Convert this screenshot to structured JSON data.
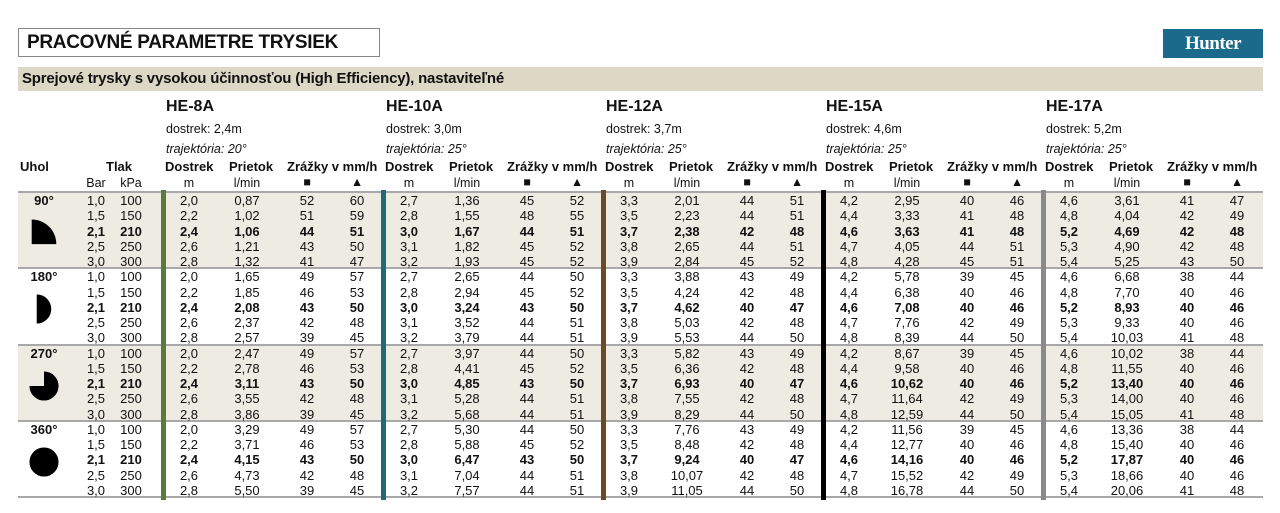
{
  "title": "PRACOVNÉ PARAMETRE TRYSIEK",
  "logo_text": "Hunter",
  "subtitle": "Sprejové trysky s vysokou účinnosťou (High Efficiency), nastaviteľné",
  "headers": {
    "uhol": "Uhol",
    "tlak": "Tlak",
    "bar": "Bar",
    "kpa": "kPa",
    "dostrek": "Dostrek",
    "prietok": "Prietok",
    "zrazky": "Zrážky v mm/h",
    "unit_m": "m",
    "unit_lmin": "l/min",
    "square_symbol": "■",
    "triangle_symbol": "▲"
  },
  "highlighted_row": 2,
  "angles": [
    {
      "label": "90°",
      "shape": "quarter-circle",
      "shaded": true
    },
    {
      "label": "180°",
      "shape": "half-circle",
      "shaded": false
    },
    {
      "label": "270°",
      "shape": "three-quarter-circle",
      "shaded": true
    },
    {
      "label": "360°",
      "shape": "full-circle",
      "shaded": false
    }
  ],
  "pressures": [
    [
      "1,0",
      "100"
    ],
    [
      "1,5",
      "150"
    ],
    [
      "2,1",
      "210"
    ],
    [
      "2,5",
      "250"
    ],
    [
      "3,0",
      "300"
    ]
  ],
  "models": [
    {
      "name": "HE-8A",
      "dostrek": "dostrek: 2,4m",
      "trajektoria": "trajektória: 20°",
      "color": "#5b7b3a",
      "groups": [
        [
          [
            "2,0",
            "0,87",
            "52",
            "60"
          ],
          [
            "2,2",
            "1,02",
            "51",
            "59"
          ],
          [
            "2,4",
            "1,06",
            "44",
            "51"
          ],
          [
            "2,6",
            "1,21",
            "43",
            "50"
          ],
          [
            "2,8",
            "1,32",
            "41",
            "47"
          ]
        ],
        [
          [
            "2,0",
            "1,65",
            "49",
            "57"
          ],
          [
            "2,2",
            "1,85",
            "46",
            "53"
          ],
          [
            "2,4",
            "2,08",
            "43",
            "50"
          ],
          [
            "2,6",
            "2,37",
            "42",
            "48"
          ],
          [
            "2,8",
            "2,57",
            "39",
            "45"
          ]
        ],
        [
          [
            "2,0",
            "2,47",
            "49",
            "57"
          ],
          [
            "2,2",
            "2,78",
            "46",
            "53"
          ],
          [
            "2,4",
            "3,11",
            "43",
            "50"
          ],
          [
            "2,6",
            "3,55",
            "42",
            "48"
          ],
          [
            "2,8",
            "3,86",
            "39",
            "45"
          ]
        ],
        [
          [
            "2,0",
            "3,29",
            "49",
            "57"
          ],
          [
            "2,2",
            "3,71",
            "46",
            "53"
          ],
          [
            "2,4",
            "4,15",
            "43",
            "50"
          ],
          [
            "2,6",
            "4,73",
            "42",
            "48"
          ],
          [
            "2,8",
            "5,50",
            "39",
            "45"
          ]
        ]
      ]
    },
    {
      "name": "HE-10A",
      "dostrek": "dostrek: 3,0m",
      "trajektoria": "trajektória: 25°",
      "color": "#1e6a78",
      "groups": [
        [
          [
            "2,7",
            "1,36",
            "45",
            "52"
          ],
          [
            "2,8",
            "1,55",
            "48",
            "55"
          ],
          [
            "3,0",
            "1,67",
            "44",
            "51"
          ],
          [
            "3,1",
            "1,82",
            "45",
            "52"
          ],
          [
            "3,2",
            "1,93",
            "45",
            "52"
          ]
        ],
        [
          [
            "2,7",
            "2,65",
            "44",
            "50"
          ],
          [
            "2,8",
            "2,94",
            "45",
            "52"
          ],
          [
            "3,0",
            "3,24",
            "43",
            "50"
          ],
          [
            "3,1",
            "3,52",
            "44",
            "51"
          ],
          [
            "3,2",
            "3,79",
            "44",
            "51"
          ]
        ],
        [
          [
            "2,7",
            "3,97",
            "44",
            "50"
          ],
          [
            "2,8",
            "4,41",
            "45",
            "52"
          ],
          [
            "3,0",
            "4,85",
            "43",
            "50"
          ],
          [
            "3,1",
            "5,28",
            "44",
            "51"
          ],
          [
            "3,2",
            "5,68",
            "44",
            "51"
          ]
        ],
        [
          [
            "2,7",
            "5,30",
            "44",
            "50"
          ],
          [
            "2,8",
            "5,88",
            "45",
            "52"
          ],
          [
            "3,0",
            "6,47",
            "43",
            "50"
          ],
          [
            "3,1",
            "7,04",
            "44",
            "51"
          ],
          [
            "3,2",
            "7,57",
            "44",
            "51"
          ]
        ]
      ]
    },
    {
      "name": "HE-12A",
      "dostrek": "dostrek: 3,7m",
      "trajektoria": "trajektória: 25°",
      "color": "#6a4a28",
      "groups": [
        [
          [
            "3,3",
            "2,01",
            "44",
            "51"
          ],
          [
            "3,5",
            "2,23",
            "44",
            "51"
          ],
          [
            "3,7",
            "2,38",
            "42",
            "48"
          ],
          [
            "3,8",
            "2,65",
            "44",
            "51"
          ],
          [
            "3,9",
            "2,84",
            "45",
            "52"
          ]
        ],
        [
          [
            "3,3",
            "3,88",
            "43",
            "49"
          ],
          [
            "3,5",
            "4,24",
            "42",
            "48"
          ],
          [
            "3,7",
            "4,62",
            "40",
            "47"
          ],
          [
            "3,8",
            "5,03",
            "42",
            "48"
          ],
          [
            "3,9",
            "5,53",
            "44",
            "50"
          ]
        ],
        [
          [
            "3,3",
            "5,82",
            "43",
            "49"
          ],
          [
            "3,5",
            "6,36",
            "42",
            "48"
          ],
          [
            "3,7",
            "6,93",
            "40",
            "47"
          ],
          [
            "3,8",
            "7,55",
            "42",
            "48"
          ],
          [
            "3,9",
            "8,29",
            "44",
            "50"
          ]
        ],
        [
          [
            "3,3",
            "7,76",
            "43",
            "49"
          ],
          [
            "3,5",
            "8,48",
            "42",
            "48"
          ],
          [
            "3,7",
            "9,24",
            "40",
            "47"
          ],
          [
            "3,8",
            "10,07",
            "42",
            "48"
          ],
          [
            "3,9",
            "11,05",
            "44",
            "50"
          ]
        ]
      ]
    },
    {
      "name": "HE-15A",
      "dostrek": "dostrek: 4,6m",
      "trajektoria": "trajektória: 25°",
      "color": "#000000",
      "groups": [
        [
          [
            "4,2",
            "2,95",
            "40",
            "46"
          ],
          [
            "4,4",
            "3,33",
            "41",
            "48"
          ],
          [
            "4,6",
            "3,63",
            "41",
            "48"
          ],
          [
            "4,7",
            "4,05",
            "44",
            "51"
          ],
          [
            "4,8",
            "4,28",
            "45",
            "51"
          ]
        ],
        [
          [
            "4,2",
            "5,78",
            "39",
            "45"
          ],
          [
            "4,4",
            "6,38",
            "40",
            "46"
          ],
          [
            "4,6",
            "7,08",
            "40",
            "46"
          ],
          [
            "4,7",
            "7,76",
            "42",
            "49"
          ],
          [
            "4,8",
            "8,39",
            "44",
            "50"
          ]
        ],
        [
          [
            "4,2",
            "8,67",
            "39",
            "45"
          ],
          [
            "4,4",
            "9,58",
            "40",
            "46"
          ],
          [
            "4,6",
            "10,62",
            "40",
            "46"
          ],
          [
            "4,7",
            "11,64",
            "42",
            "49"
          ],
          [
            "4,8",
            "12,59",
            "44",
            "50"
          ]
        ],
        [
          [
            "4,2",
            "11,56",
            "39",
            "45"
          ],
          [
            "4,4",
            "12,77",
            "40",
            "46"
          ],
          [
            "4,6",
            "14,16",
            "40",
            "46"
          ],
          [
            "4,7",
            "15,52",
            "42",
            "49"
          ],
          [
            "4,8",
            "16,78",
            "44",
            "50"
          ]
        ]
      ]
    },
    {
      "name": "HE-17A",
      "dostrek": "dostrek: 5,2m",
      "trajektoria": "trajektória: 25°",
      "color": "#8a8a8a",
      "groups": [
        [
          [
            "4,6",
            "3,61",
            "41",
            "47"
          ],
          [
            "4,8",
            "4,04",
            "42",
            "49"
          ],
          [
            "5,2",
            "4,69",
            "42",
            "48"
          ],
          [
            "5,3",
            "4,90",
            "42",
            "48"
          ],
          [
            "5,4",
            "5,25",
            "43",
            "50"
          ]
        ],
        [
          [
            "4,6",
            "6,68",
            "38",
            "44"
          ],
          [
            "4,8",
            "7,70",
            "40",
            "46"
          ],
          [
            "5,2",
            "8,93",
            "40",
            "46"
          ],
          [
            "5,3",
            "9,33",
            "40",
            "46"
          ],
          [
            "5,4",
            "10,03",
            "41",
            "48"
          ]
        ],
        [
          [
            "4,6",
            "10,02",
            "38",
            "44"
          ],
          [
            "4,8",
            "11,55",
            "40",
            "46"
          ],
          [
            "5,2",
            "13,40",
            "40",
            "46"
          ],
          [
            "5,3",
            "14,00",
            "40",
            "46"
          ],
          [
            "5,4",
            "15,05",
            "41",
            "48"
          ]
        ],
        [
          [
            "4,6",
            "13,36",
            "38",
            "44"
          ],
          [
            "4,8",
            "15,40",
            "40",
            "46"
          ],
          [
            "5,2",
            "17,87",
            "40",
            "46"
          ],
          [
            "5,3",
            "18,66",
            "40",
            "46"
          ],
          [
            "5,4",
            "20,06",
            "41",
            "48"
          ]
        ]
      ]
    }
  ]
}
